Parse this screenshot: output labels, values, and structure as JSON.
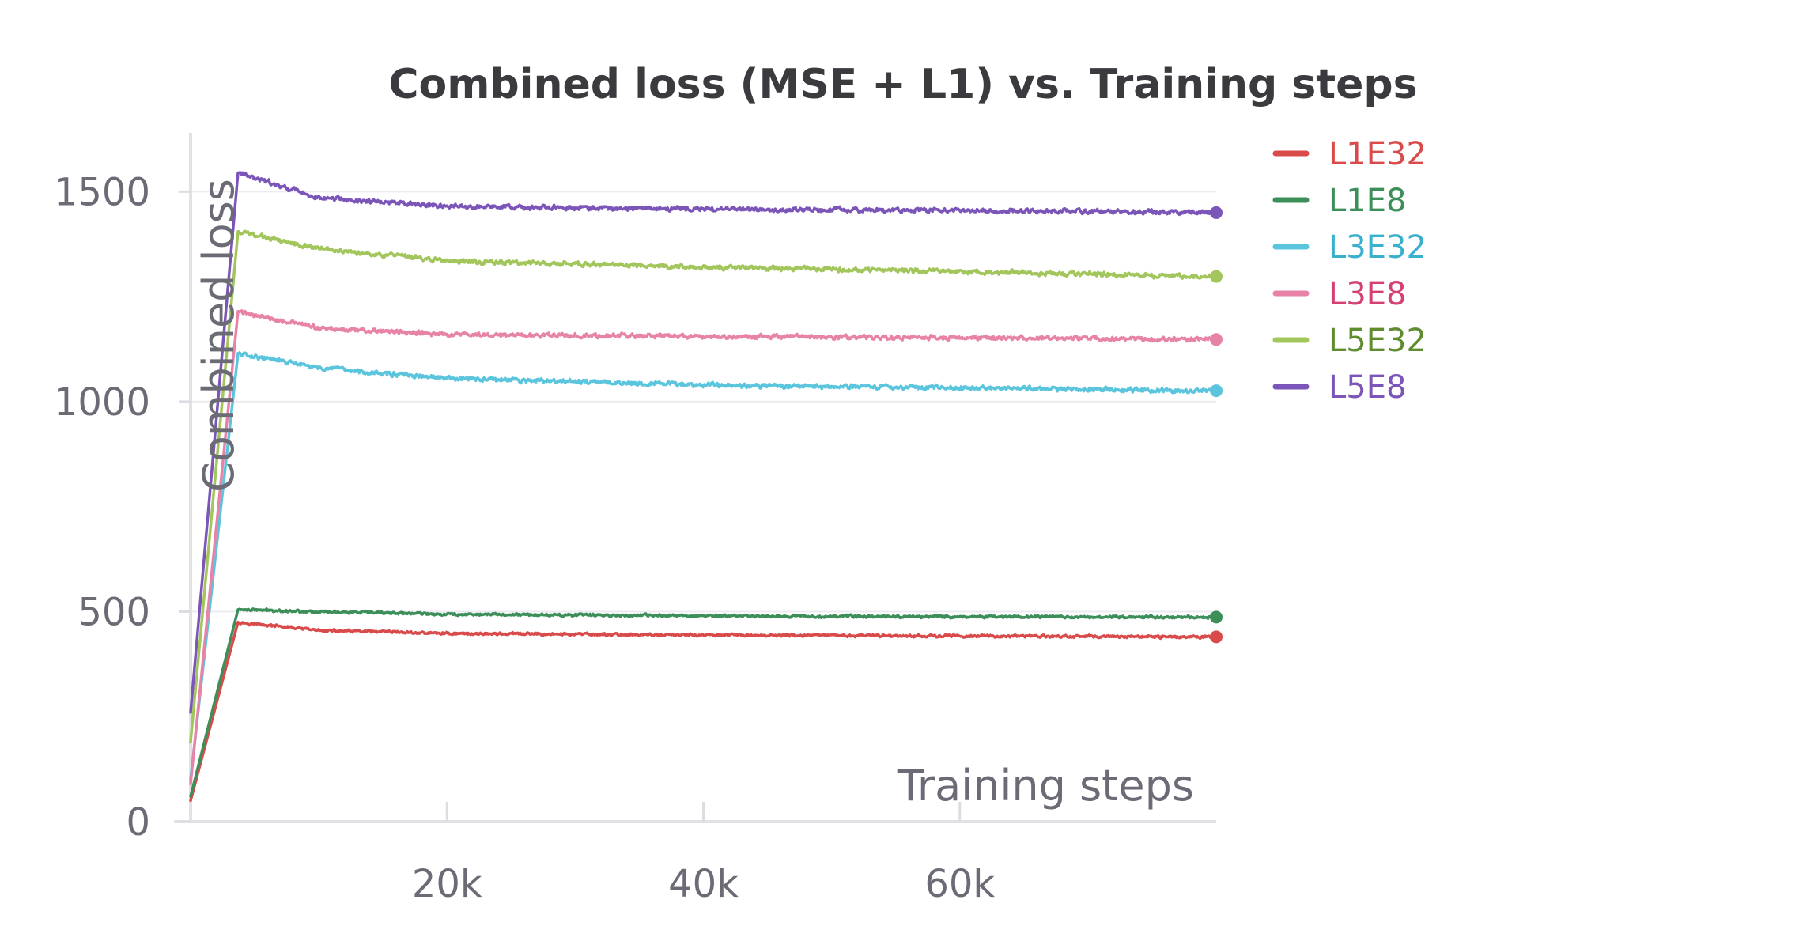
{
  "chart_data": {
    "type": "line",
    "title": "Combined loss (MSE + L1) vs. Training steps",
    "xlabel": "Training steps",
    "ylabel": "Combined loss",
    "xlim": [
      0,
      80000
    ],
    "ylim": [
      0,
      1640
    ],
    "x_ticks": [
      {
        "value": 20000,
        "label": "20k"
      },
      {
        "value": 40000,
        "label": "40k"
      },
      {
        "value": 60000,
        "label": "60k"
      }
    ],
    "y_ticks": [
      {
        "value": 0,
        "label": "0"
      },
      {
        "value": 500,
        "label": "500"
      },
      {
        "value": 1000,
        "label": "1000"
      },
      {
        "value": 1500,
        "label": "1500"
      }
    ],
    "grid": true,
    "legend_position": "right",
    "series": [
      {
        "name": "L1E32",
        "color": "#d94a4a",
        "label_color": "#d94a4a",
        "points": [
          [
            0,
            50
          ],
          [
            3700,
            475
          ],
          [
            10000,
            455
          ],
          [
            20000,
            448
          ],
          [
            40000,
            444
          ],
          [
            60000,
            442
          ],
          [
            80000,
            440
          ]
        ]
      },
      {
        "name": "L1E8",
        "color": "#3d8f5a",
        "label_color": "#3d8f5a",
        "points": [
          [
            0,
            60
          ],
          [
            3700,
            505
          ],
          [
            10000,
            500
          ],
          [
            20000,
            494
          ],
          [
            40000,
            490
          ],
          [
            60000,
            488
          ],
          [
            80000,
            487
          ]
        ]
      },
      {
        "name": "L3E32",
        "color": "#5bc5dd",
        "label_color": "#3ab0cf",
        "points": [
          [
            0,
            100
          ],
          [
            3700,
            1115
          ],
          [
            10000,
            1080
          ],
          [
            20000,
            1055
          ],
          [
            40000,
            1040
          ],
          [
            60000,
            1033
          ],
          [
            80000,
            1026
          ]
        ]
      },
      {
        "name": "L3E8",
        "color": "#e883a8",
        "label_color": "#d63f74",
        "points": [
          [
            0,
            90
          ],
          [
            3700,
            1215
          ],
          [
            10000,
            1175
          ],
          [
            20000,
            1160
          ],
          [
            40000,
            1155
          ],
          [
            60000,
            1152
          ],
          [
            80000,
            1148
          ]
        ]
      },
      {
        "name": "L5E32",
        "color": "#a2c65c",
        "label_color": "#5e8c2e",
        "points": [
          [
            0,
            190
          ],
          [
            3700,
            1405
          ],
          [
            10000,
            1365
          ],
          [
            20000,
            1335
          ],
          [
            40000,
            1320
          ],
          [
            60000,
            1310
          ],
          [
            80000,
            1298
          ]
        ]
      },
      {
        "name": "L5E8",
        "color": "#7c55b8",
        "label_color": "#7c55b8",
        "points": [
          [
            0,
            260
          ],
          [
            3700,
            1545
          ],
          [
            10000,
            1485
          ],
          [
            20000,
            1465
          ],
          [
            40000,
            1458
          ],
          [
            60000,
            1455
          ],
          [
            80000,
            1450
          ]
        ]
      }
    ]
  }
}
